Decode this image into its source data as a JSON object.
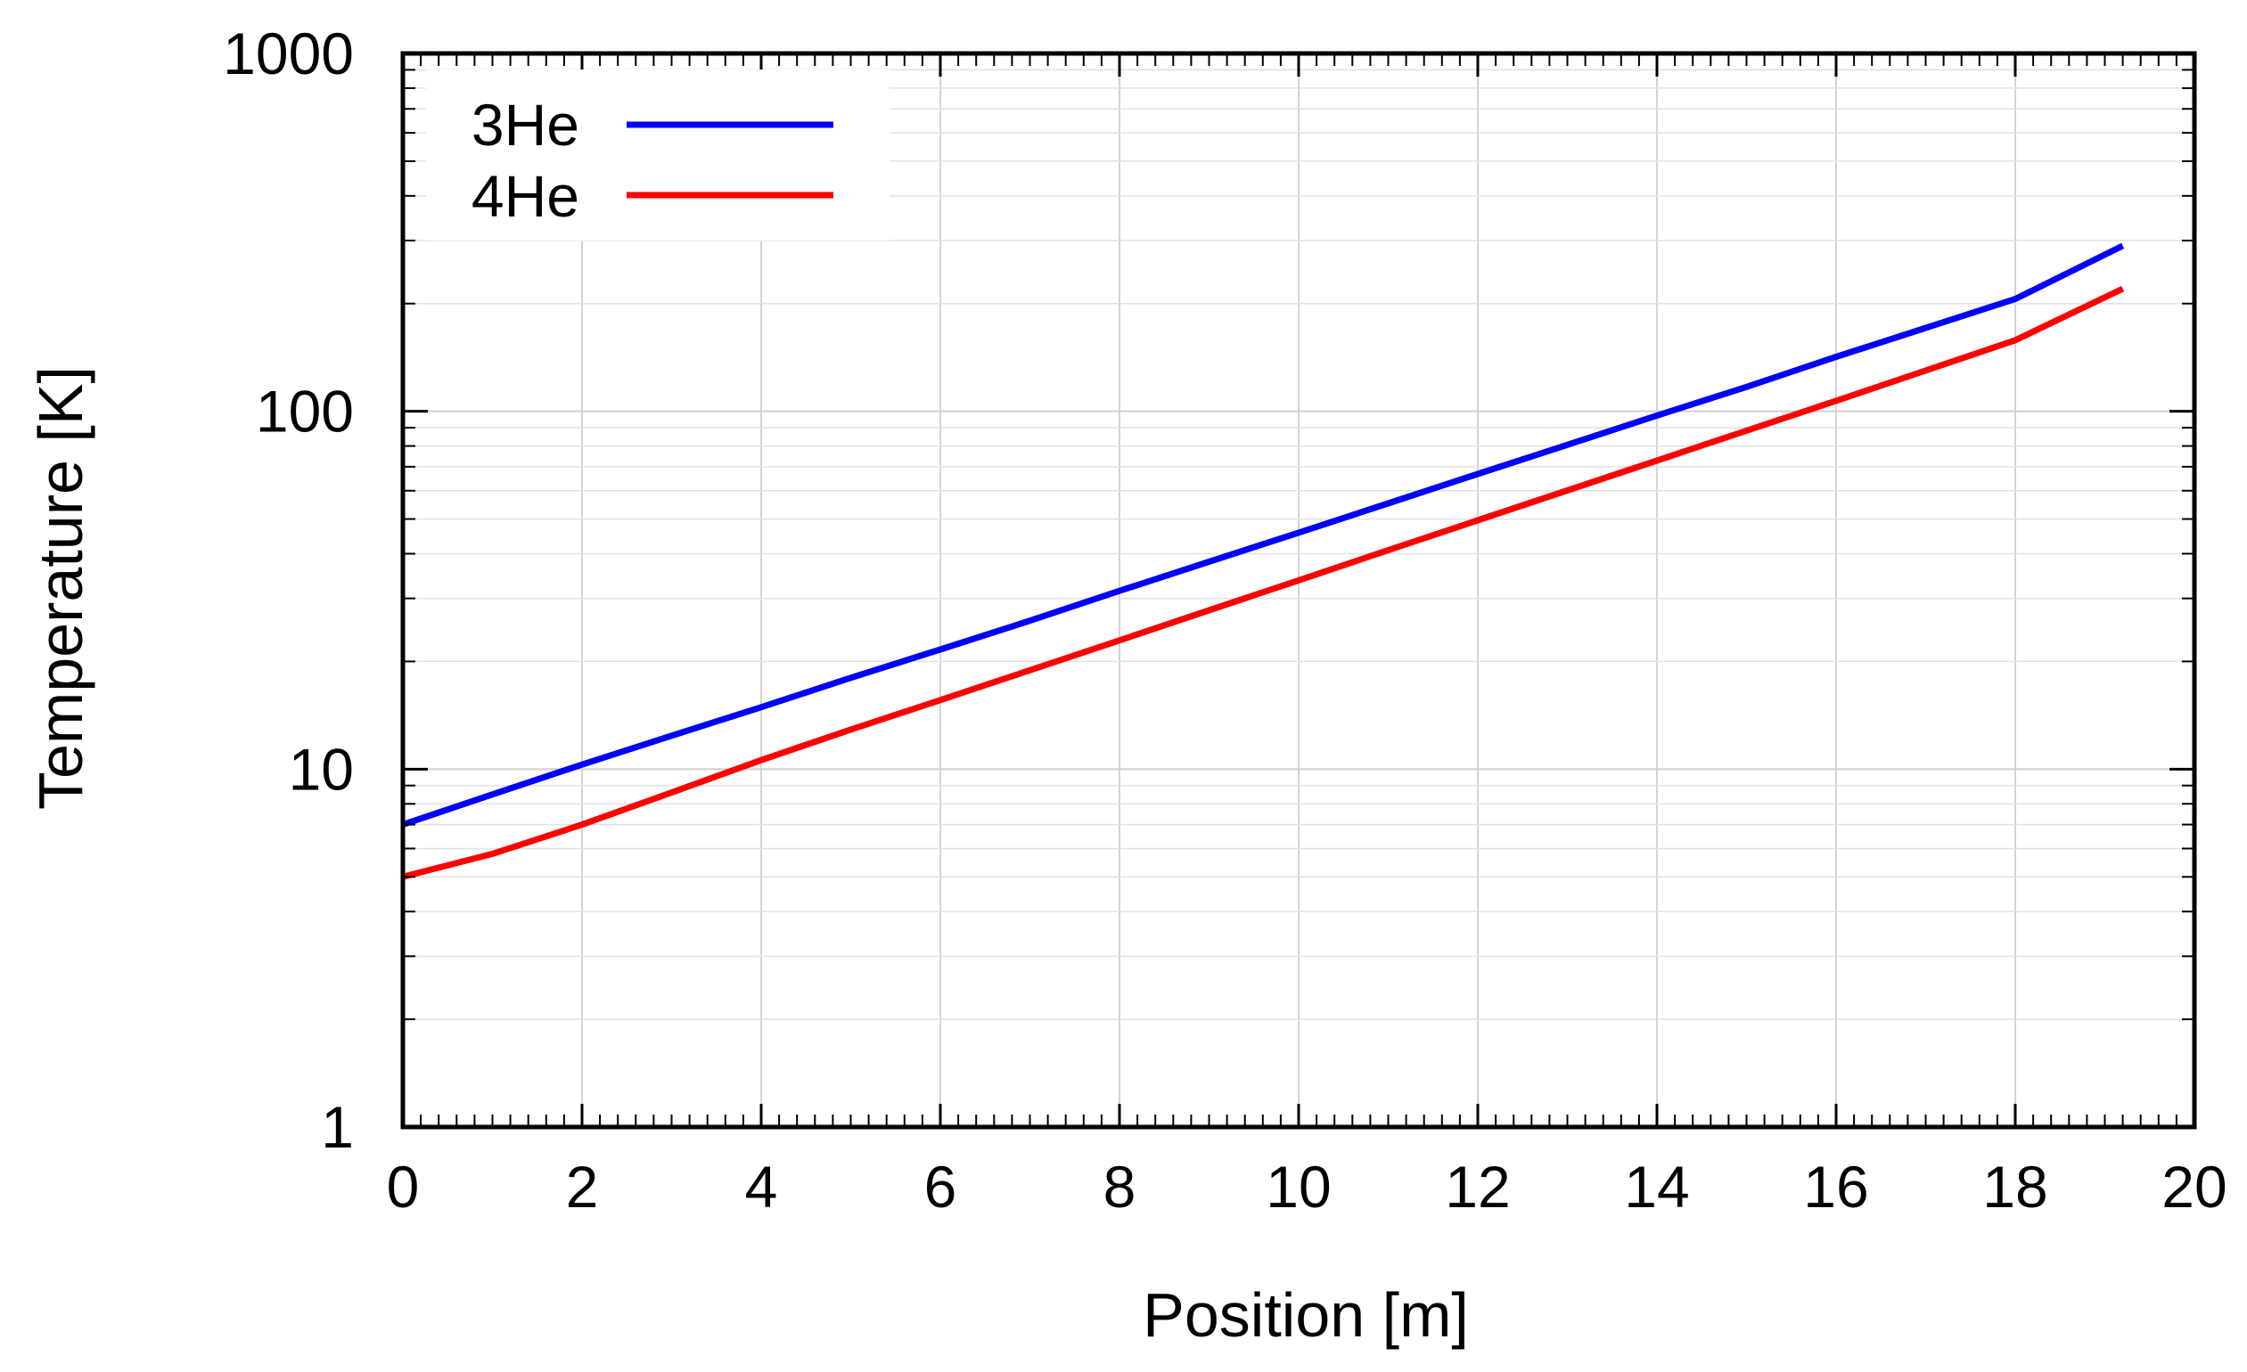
{
  "chart_data": {
    "type": "line",
    "xlabel": "Position [m]",
    "ylabel": "Temperature [K]",
    "xlim": [
      0,
      20
    ],
    "ylim": [
      1,
      1000
    ],
    "yscale": "log",
    "grid": true,
    "legend_position": "top-left",
    "x_ticks": [
      "0",
      "2",
      "4",
      "6",
      "8",
      "10",
      "12",
      "14",
      "16",
      "18",
      "20"
    ],
    "y_ticks": [
      "1",
      "10",
      "100",
      "1000"
    ],
    "series": [
      {
        "name": "3He",
        "color": "#0000ff",
        "x": [
          0,
          1,
          2,
          3,
          4,
          5,
          6,
          7,
          8,
          9,
          10,
          11,
          12,
          13,
          14,
          15,
          16,
          17,
          18,
          19.2
        ],
        "y": [
          7.0,
          8.5,
          10.3,
          12.4,
          14.9,
          18.0,
          21.6,
          26.0,
          31.5,
          38.0,
          45.8,
          55.3,
          66.8,
          80.6,
          97.3,
          117,
          142,
          171,
          206,
          290
        ]
      },
      {
        "name": "4He",
        "color": "#ff0000",
        "x": [
          0,
          1,
          2,
          3,
          4,
          5,
          6,
          7,
          8,
          9,
          10,
          11,
          12,
          13,
          14,
          15,
          16,
          17,
          18,
          19.2
        ],
        "y": [
          5.0,
          5.8,
          7.0,
          8.6,
          10.6,
          12.9,
          15.6,
          18.9,
          22.9,
          27.8,
          33.7,
          40.9,
          49.6,
          60.1,
          72.8,
          88.3,
          107,
          130,
          158,
          220
        ]
      }
    ]
  }
}
